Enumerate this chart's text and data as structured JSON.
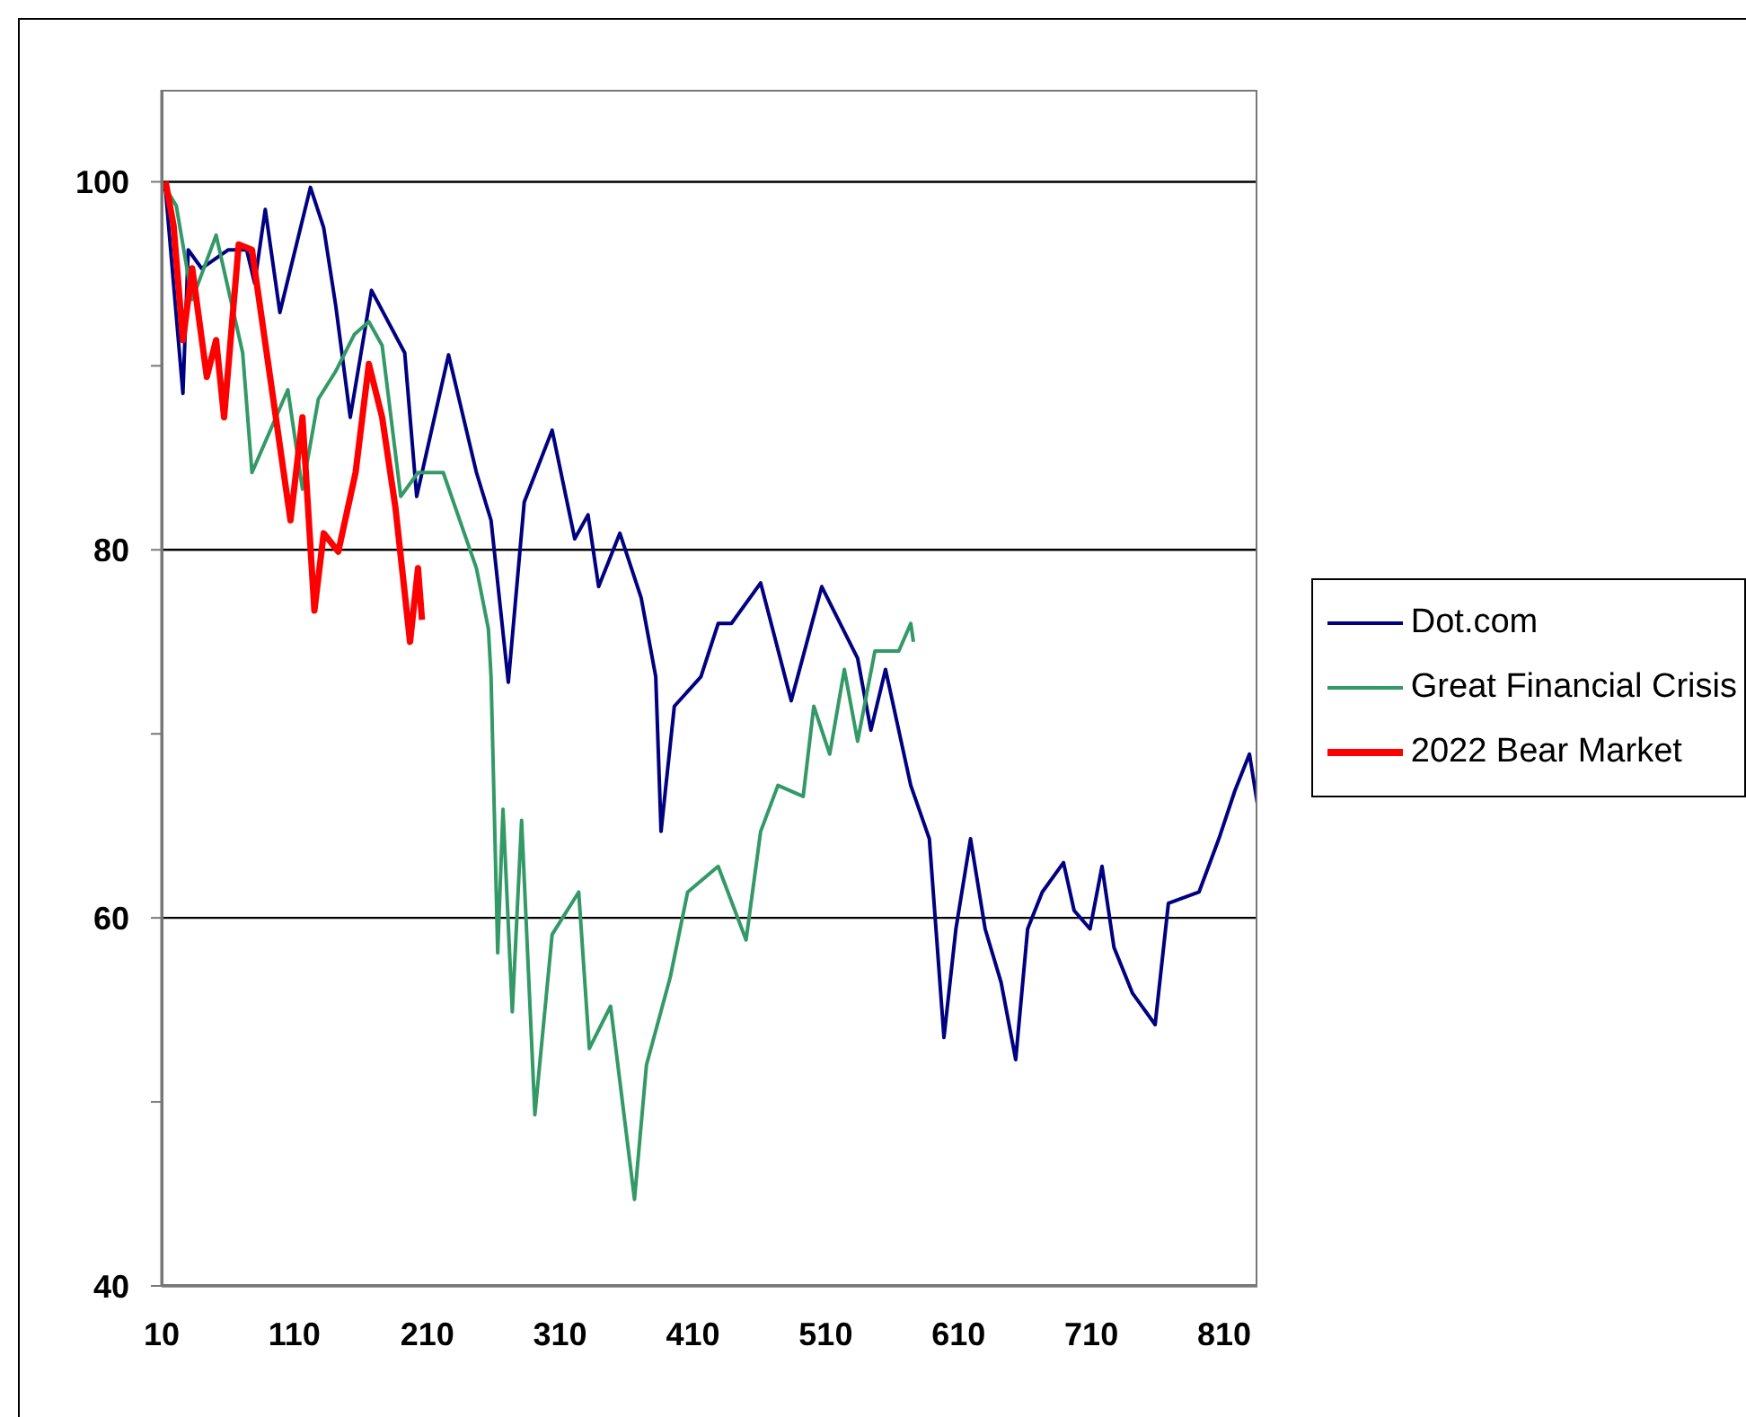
{
  "chart_data": {
    "type": "line",
    "xlim": [
      10,
      835
    ],
    "xticks": [
      10,
      110,
      210,
      310,
      410,
      510,
      610,
      710,
      810
    ],
    "ylim": [
      40,
      105
    ],
    "yticks": [
      40,
      {
        "value": 50,
        "label": null
      },
      60,
      {
        "value": 70,
        "label": null
      },
      80,
      {
        "value": 90,
        "label": null
      },
      100
    ],
    "grid": "y",
    "legend": "right",
    "line_style": "solid",
    "marker": "none",
    "series": [
      {
        "name": "Dot.com",
        "color": "#000080",
        "x": [
          10,
          13,
          26,
          30,
          40,
          60,
          74,
          80,
          88,
          99,
          122,
          132,
          141,
          152,
          168,
          193,
          202,
          226,
          247,
          258,
          271,
          283,
          304,
          321,
          331,
          339,
          355,
          371,
          382,
          386,
          396,
          416,
          429,
          439,
          461,
          484,
          507,
          534,
          544,
          555,
          574,
          588,
          599,
          608,
          619,
          630,
          642,
          653,
          662,
          673,
          689,
          697,
          709,
          718,
          727,
          741,
          758,
          768,
          791,
          806,
          818,
          829,
          835
        ],
        "values": [
          100,
          99.5,
          88.5,
          96.3,
          95.3,
          96.3,
          96.3,
          94.5,
          98.5,
          92.9,
          99.7,
          97.5,
          93.3,
          87.2,
          94.1,
          90.7,
          82.9,
          90.6,
          84.2,
          81.6,
          72.8,
          82.6,
          86.5,
          80.6,
          81.9,
          78,
          80.9,
          77.4,
          73.1,
          64.7,
          71.5,
          73.1,
          76,
          76,
          78.2,
          71.8,
          78,
          74.1,
          70.2,
          73.5,
          67.2,
          64.3,
          53.5,
          59.4,
          64.3,
          59.4,
          56.5,
          52.3,
          59.4,
          61.4,
          63,
          60.4,
          59.4,
          62.8,
          58.4,
          55.9,
          54.2,
          60.8,
          61.4,
          64.3,
          66.9,
          68.9,
          66.2
        ]
      },
      {
        "name": "Great Financial Crisis",
        "color": "#339966",
        "x": [
          10,
          21,
          33,
          51,
          71,
          78,
          105,
          116,
          128,
          141,
          155,
          166,
          176,
          190,
          203,
          222,
          247,
          256,
          258,
          263,
          267,
          274,
          281,
          291,
          304,
          324,
          332,
          348,
          366,
          375,
          393,
          406,
          429,
          450,
          461,
          474,
          493,
          501,
          513,
          524,
          534,
          547,
          565,
          574,
          576
        ],
        "values": [
          100,
          98.7,
          93.6,
          97.1,
          90.7,
          84.2,
          88.7,
          83.3,
          88.2,
          89.7,
          91.7,
          92.4,
          91.1,
          82.9,
          84.2,
          84.2,
          79,
          75.7,
          73.1,
          58.1,
          65.9,
          54.9,
          65.3,
          49.3,
          59.1,
          61.4,
          52.9,
          55.2,
          44.7,
          52,
          56.8,
          61.4,
          62.8,
          58.8,
          64.7,
          67.2,
          66.6,
          71.5,
          68.9,
          73.5,
          69.6,
          74.5,
          74.5,
          76,
          75
        ]
      },
      {
        "name": "2022 Bear Market",
        "color": "#ff0000",
        "x": [
          13,
          19,
          26,
          33,
          44,
          51,
          57,
          68,
          78,
          94,
          107,
          116,
          125,
          132,
          143,
          156,
          166,
          176,
          186,
          197,
          203,
          206
        ],
        "values": [
          100,
          97.6,
          91.4,
          95.3,
          89.4,
          91.4,
          87.2,
          96.6,
          96.3,
          88.2,
          81.6,
          87.2,
          76.7,
          80.9,
          79.9,
          84.2,
          90.1,
          87.2,
          82.3,
          75,
          79,
          76.2
        ]
      }
    ]
  }
}
